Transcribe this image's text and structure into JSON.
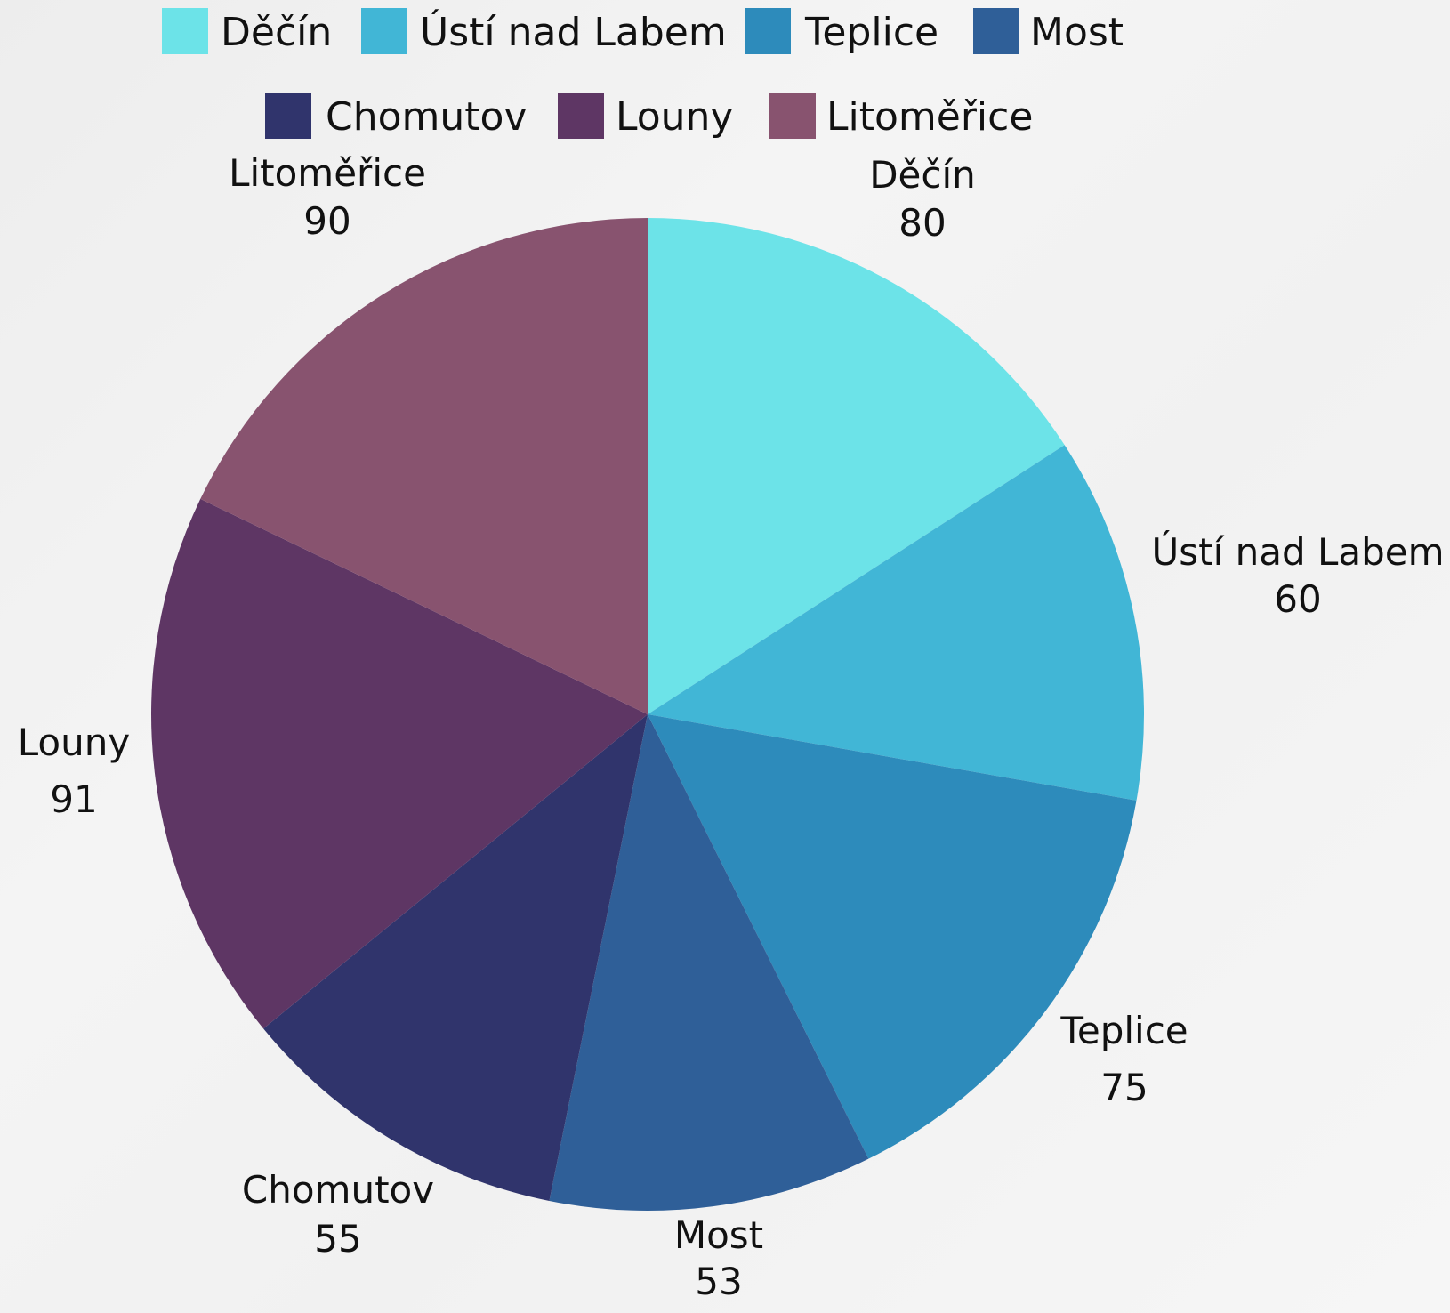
{
  "chart_data": {
    "type": "pie",
    "title": "",
    "legend_placement": "top",
    "slices": [
      {
        "label": "Děčín",
        "value": 80,
        "color": "#6ce3e8"
      },
      {
        "label": "Ústí nad Labem",
        "value": 60,
        "color": "#41b6d6"
      },
      {
        "label": "Teplice",
        "value": 75,
        "color": "#2d8bbb"
      },
      {
        "label": "Most",
        "value": 53,
        "color": "#2f5f98"
      },
      {
        "label": "Chomutov",
        "value": 55,
        "color": "#30346c"
      },
      {
        "label": "Louny",
        "value": 91,
        "color": "#5e3664"
      },
      {
        "label": "Litoměřice",
        "value": 90,
        "color": "#88536f"
      }
    ]
  }
}
